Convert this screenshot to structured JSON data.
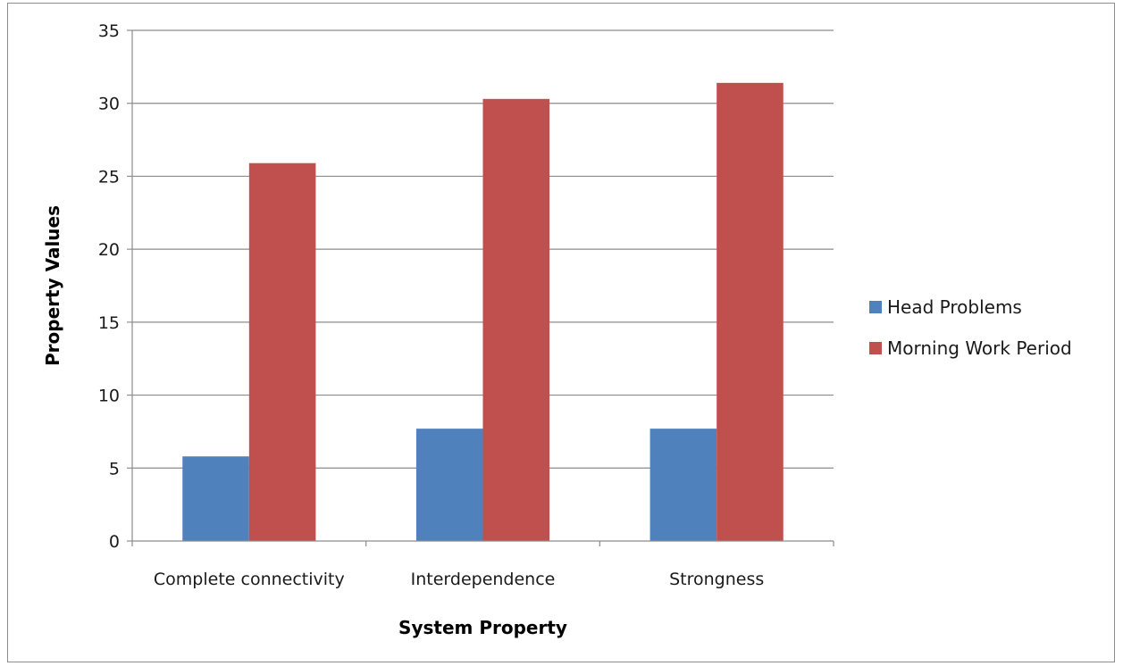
{
  "chart_data": {
    "type": "bar",
    "title": "",
    "xlabel": "System Property",
    "ylabel": "Property Values",
    "categories": [
      "Complete connectivity",
      "Interdependence",
      "Strongness"
    ],
    "series": [
      {
        "name": "Head Problems",
        "color": "#4F81BD",
        "values": [
          5.8,
          7.7,
          7.7
        ]
      },
      {
        "name": "Morning Work Period",
        "color": "#C0504D",
        "values": [
          25.9,
          30.3,
          31.4
        ]
      }
    ],
    "ylim": [
      0,
      35
    ],
    "yticks": [
      "0",
      "5",
      "10",
      "15",
      "20",
      "25",
      "30",
      "35"
    ],
    "grid": true,
    "legend_position": "right"
  }
}
